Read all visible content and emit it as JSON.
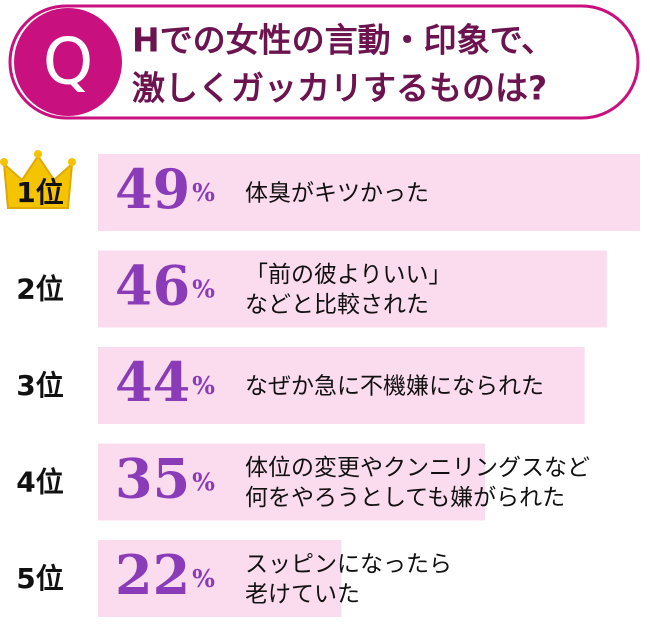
{
  "chart_data": {
    "type": "bar",
    "badge": "Q",
    "title": [
      "Hでの女性の言動・印象で、",
      "激しくガッカリするものは?"
    ],
    "ranks": [
      "1位",
      "2位",
      "3位",
      "4位",
      "5位"
    ],
    "categories": [
      [
        "体臭がキツかった"
      ],
      [
        "「前の彼よりいい」",
        "などと比較された"
      ],
      [
        "なぜか急に不機嫌になられた"
      ],
      [
        "体位の変更やクンニリングスなど",
        "何をやろうとしても嫌がられた"
      ],
      [
        "スッピンになったら",
        "老けていた"
      ]
    ],
    "values": [
      49,
      46,
      44,
      35,
      22
    ],
    "value_labels": [
      "49%",
      "46%",
      "44%",
      "35%",
      "22%"
    ],
    "xlim": [
      0,
      49
    ],
    "color": "#fbdcef"
  }
}
